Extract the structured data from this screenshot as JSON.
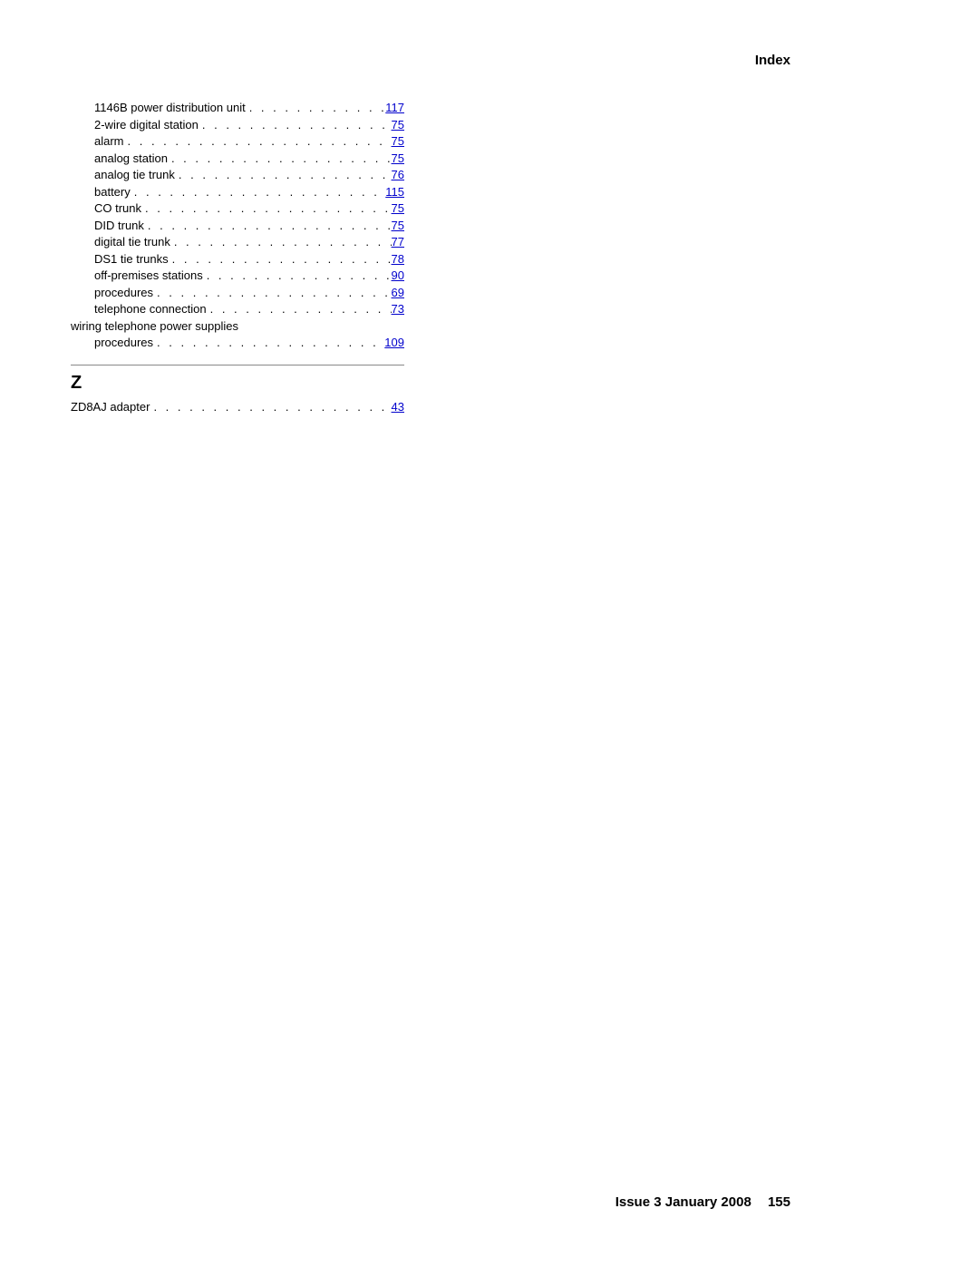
{
  "header": {
    "title": "Index"
  },
  "entries_group1": [
    {
      "text": "1146B power distribution unit",
      "page": "117",
      "sub": true
    },
    {
      "text": "2-wire digital station",
      "page": "75",
      "sub": true
    },
    {
      "text": "alarm",
      "page": "75",
      "sub": true
    },
    {
      "text": "analog station",
      "page": "75",
      "sub": true
    },
    {
      "text": "analog tie trunk",
      "page": "76",
      "sub": true
    },
    {
      "text": "battery",
      "page": "115",
      "sub": true
    },
    {
      "text": "CO trunk",
      "page": "75",
      "sub": true
    },
    {
      "text": "DID trunk",
      "page": "75",
      "sub": true
    },
    {
      "text": "digital tie trunk",
      "page": "77",
      "sub": true
    },
    {
      "text": "DS1 tie trunks",
      "page": "78",
      "sub": true
    },
    {
      "text": "off-premises stations",
      "page": "90",
      "sub": true
    },
    {
      "text": "procedures",
      "page": "69",
      "sub": true
    },
    {
      "text": "telephone connection",
      "page": "73",
      "sub": true
    }
  ],
  "group1_heading": "wiring telephone power supplies",
  "entries_group2": [
    {
      "text": "procedures",
      "page": "109",
      "sub": true
    }
  ],
  "section_z": {
    "letter": "Z",
    "entries": [
      {
        "text": "ZD8AJ adapter",
        "page": "43",
        "sub": false
      }
    ]
  },
  "footer": {
    "issue": "Issue 3   January 2008",
    "page": "155"
  }
}
